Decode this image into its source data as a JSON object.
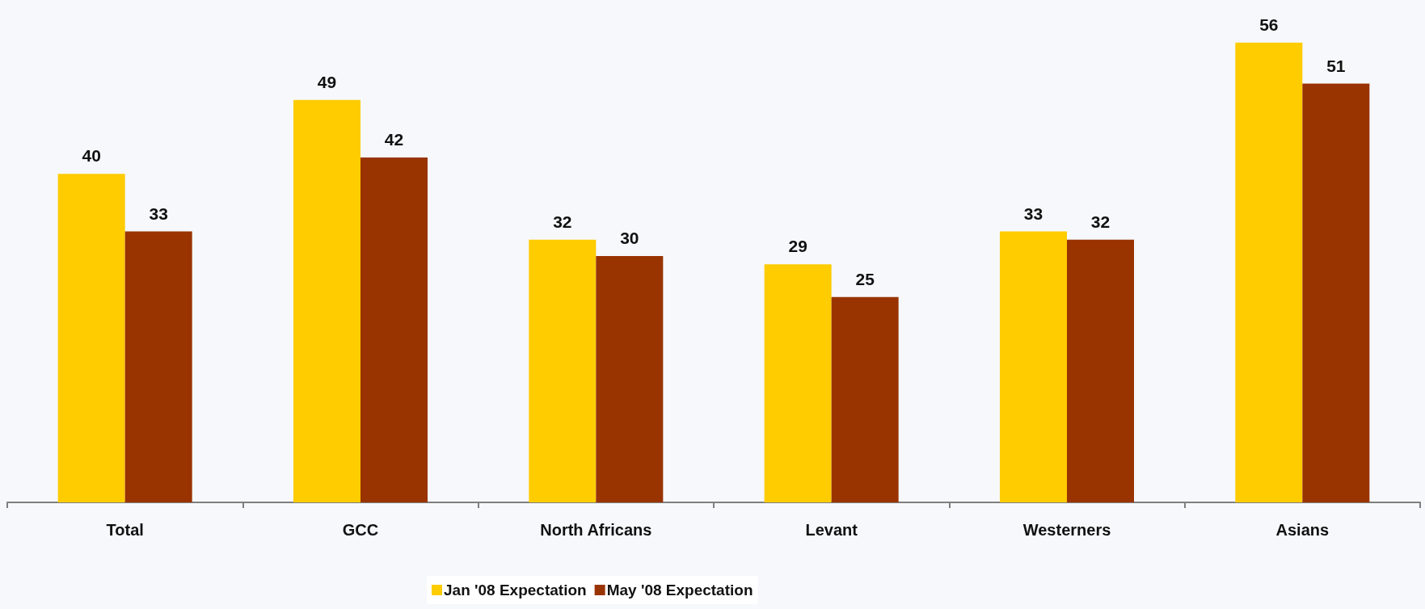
{
  "chart_data": {
    "type": "bar",
    "categories": [
      "Total",
      "GCC",
      "North Africans",
      "Levant",
      "Westerners",
      "Asians"
    ],
    "series": [
      {
        "name": "Jan '08 Expectation",
        "color": "#ffcc00",
        "values": [
          40,
          49,
          32,
          29,
          33,
          56
        ]
      },
      {
        "name": "May '08 Expectation",
        "color": "#993300",
        "values": [
          33,
          42,
          30,
          25,
          32,
          51
        ]
      }
    ],
    "data_labels": true,
    "legend": "bottom"
  }
}
